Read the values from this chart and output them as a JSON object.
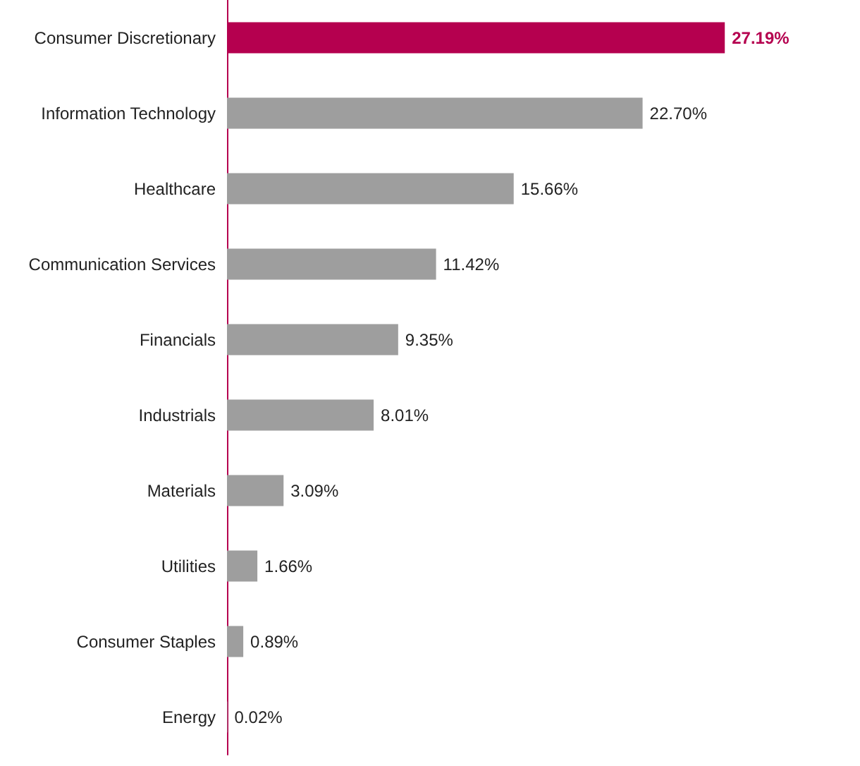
{
  "chart_data": {
    "type": "bar",
    "orientation": "horizontal",
    "categories": [
      "Consumer Discretionary",
      "Information Technology",
      "Healthcare",
      "Communication Services",
      "Financials",
      "Industrials",
      "Materials",
      "Utilities",
      "Consumer Staples",
      "Energy"
    ],
    "values": [
      27.19,
      22.7,
      15.66,
      11.42,
      9.35,
      8.01,
      3.09,
      1.66,
      0.89,
      0.02
    ],
    "value_labels": [
      "27.19%",
      "22.70%",
      "15.66%",
      "11.42%",
      "9.35%",
      "8.01%",
      "3.09%",
      "1.66%",
      "0.89%",
      "0.02%"
    ],
    "colors": [
      "#b5004f",
      "#9e9e9e",
      "#9e9e9e",
      "#9e9e9e",
      "#9e9e9e",
      "#9e9e9e",
      "#9e9e9e",
      "#9e9e9e",
      "#9e9e9e",
      "#9e9e9e"
    ]
  }
}
